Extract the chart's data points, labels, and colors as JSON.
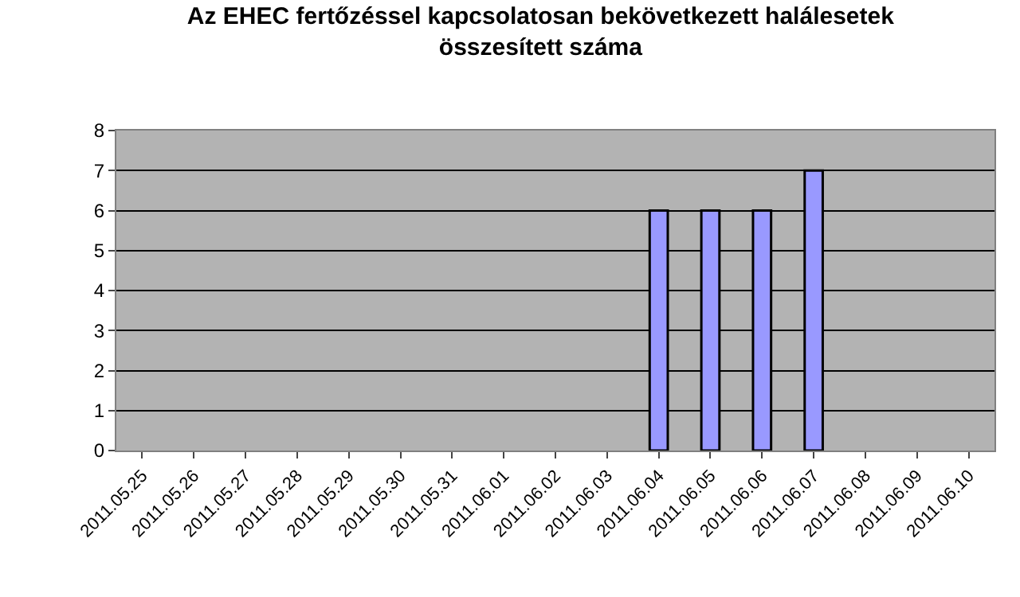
{
  "chart_data": {
    "type": "bar",
    "title": "Az EHEC fertőzéssel kapcsolatosan bekövetkezett halálesetek\nösszesített száma",
    "categories": [
      "2011.05.25",
      "2011.05.26",
      "2011.05.27",
      "2011.05.28",
      "2011.05.29",
      "2011.05.30",
      "2011.05.31",
      "2011.06.01",
      "2011.06.02",
      "2011.06.03",
      "2011.06.04",
      "2011.06.05",
      "2011.06.06",
      "2011.06.07",
      "2011.06.08",
      "2011.06.09",
      "2011.06.10"
    ],
    "values": [
      null,
      null,
      null,
      null,
      null,
      null,
      null,
      null,
      null,
      null,
      6,
      6,
      6,
      7,
      null,
      null,
      null
    ],
    "color": "#9999ff",
    "ylim": [
      0,
      8
    ],
    "yticks": [
      0,
      1,
      2,
      3,
      4,
      5,
      6,
      7,
      8
    ],
    "grid": "y",
    "legend": false
  }
}
